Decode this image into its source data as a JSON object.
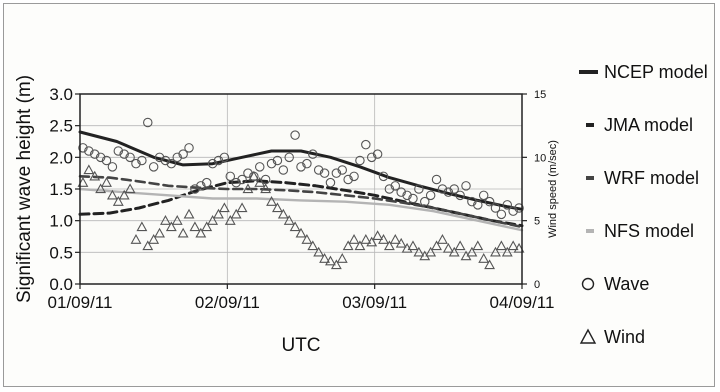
{
  "chart_data": {
    "type": "line",
    "xlabel": "UTC",
    "ylabel": "Significant wave height (m)",
    "y2label": "Wind speed (m/sec)",
    "x_ticks": [
      "01/09/11",
      "02/09/11",
      "03/09/11",
      "04/09/11"
    ],
    "y_ticks": [
      "0.0",
      "0.5",
      "1.0",
      "1.5",
      "2.0",
      "2.5",
      "3.0"
    ],
    "y2_ticks": [
      "0",
      "5",
      "10",
      "15"
    ],
    "xlim": [
      0,
      3
    ],
    "ylim": [
      0,
      3
    ],
    "y2lim": [
      0,
      15
    ],
    "grid": true,
    "legend_position": "right",
    "series": [
      {
        "name": "NCEP model",
        "kind": "line",
        "style": "solid",
        "color": "#222222",
        "x": [
          0,
          0.25,
          0.5,
          0.7,
          0.9,
          1.1,
          1.3,
          1.5,
          1.7,
          1.9,
          2.1,
          2.3,
          2.5,
          2.7,
          2.9,
          3.0
        ],
        "y": [
          2.4,
          2.25,
          2.0,
          1.88,
          1.9,
          2.0,
          2.1,
          2.1,
          2.0,
          1.85,
          1.68,
          1.55,
          1.43,
          1.32,
          1.22,
          1.18
        ]
      },
      {
        "name": "JMA model",
        "kind": "line",
        "style": "dashed",
        "color": "#222222",
        "x": [
          0,
          0.2,
          0.4,
          0.6,
          0.8,
          1.0,
          1.2,
          1.4,
          1.6,
          1.8,
          2.0,
          2.2,
          2.4,
          2.6,
          2.8,
          3.0
        ],
        "y": [
          1.1,
          1.12,
          1.2,
          1.32,
          1.48,
          1.6,
          1.63,
          1.6,
          1.55,
          1.48,
          1.4,
          1.3,
          1.2,
          1.1,
          1.0,
          0.92
        ]
      },
      {
        "name": "WRF model",
        "kind": "line",
        "style": "dashed",
        "color": "#444444",
        "x": [
          0,
          0.2,
          0.4,
          0.6,
          0.8,
          1.0,
          1.2,
          1.4,
          1.6,
          1.8,
          2.0,
          2.2,
          2.4,
          2.6,
          2.8,
          3.0
        ],
        "y": [
          1.7,
          1.68,
          1.62,
          1.55,
          1.52,
          1.5,
          1.5,
          1.48,
          1.45,
          1.4,
          1.35,
          1.28,
          1.2,
          1.1,
          1.0,
          0.9
        ]
      },
      {
        "name": "NFS model",
        "kind": "line",
        "style": "solid",
        "color": "#b4b4b4",
        "x": [
          0,
          0.3,
          0.6,
          0.9,
          1.2,
          1.5,
          1.8,
          2.1,
          2.4,
          2.7,
          3.0
        ],
        "y": [
          1.5,
          1.45,
          1.4,
          1.35,
          1.35,
          1.32,
          1.3,
          1.25,
          1.15,
          1.0,
          0.85
        ]
      },
      {
        "name": "Wave",
        "kind": "marker",
        "marker": "circle",
        "axis": "left",
        "x": [
          0.02,
          0.06,
          0.1,
          0.14,
          0.18,
          0.22,
          0.26,
          0.3,
          0.34,
          0.38,
          0.42,
          0.46,
          0.5,
          0.54,
          0.58,
          0.62,
          0.66,
          0.7,
          0.74,
          0.78,
          0.82,
          0.86,
          0.9,
          0.94,
          0.98,
          1.02,
          1.06,
          1.1,
          1.14,
          1.18,
          1.22,
          1.26,
          1.3,
          1.34,
          1.38,
          1.42,
          1.46,
          1.5,
          1.54,
          1.58,
          1.62,
          1.66,
          1.7,
          1.74,
          1.78,
          1.82,
          1.86,
          1.9,
          1.94,
          1.98,
          2.02,
          2.06,
          2.1,
          2.14,
          2.18,
          2.22,
          2.26,
          2.3,
          2.34,
          2.38,
          2.42,
          2.46,
          2.5,
          2.54,
          2.58,
          2.62,
          2.66,
          2.7,
          2.74,
          2.78,
          2.82,
          2.86,
          2.9,
          2.94,
          2.98
        ],
        "y": [
          2.15,
          2.1,
          2.05,
          2.0,
          1.95,
          1.85,
          2.1,
          2.05,
          2.0,
          1.9,
          1.95,
          2.55,
          1.85,
          2.0,
          1.95,
          1.9,
          2.0,
          2.05,
          2.15,
          1.5,
          1.55,
          1.6,
          1.9,
          1.95,
          2.0,
          1.7,
          1.6,
          1.65,
          1.75,
          1.7,
          1.85,
          1.65,
          1.9,
          1.95,
          1.8,
          2.0,
          2.35,
          1.85,
          1.9,
          2.05,
          1.8,
          1.75,
          1.6,
          1.75,
          1.8,
          1.65,
          1.7,
          1.95,
          2.2,
          2.0,
          2.05,
          1.7,
          1.5,
          1.55,
          1.45,
          1.4,
          1.35,
          1.5,
          1.3,
          1.4,
          1.65,
          1.5,
          1.45,
          1.5,
          1.4,
          1.55,
          1.3,
          1.25,
          1.4,
          1.3,
          1.2,
          1.1,
          1.25,
          1.15,
          1.2
        ]
      },
      {
        "name": "Wind",
        "kind": "marker",
        "marker": "triangle",
        "axis": "right",
        "x": [
          0.02,
          0.06,
          0.1,
          0.14,
          0.18,
          0.22,
          0.26,
          0.3,
          0.34,
          0.38,
          0.42,
          0.46,
          0.5,
          0.54,
          0.58,
          0.62,
          0.66,
          0.7,
          0.74,
          0.78,
          0.82,
          0.86,
          0.9,
          0.94,
          0.98,
          1.02,
          1.06,
          1.1,
          1.14,
          1.18,
          1.22,
          1.26,
          1.3,
          1.34,
          1.38,
          1.42,
          1.46,
          1.5,
          1.54,
          1.58,
          1.62,
          1.66,
          1.7,
          1.74,
          1.78,
          1.82,
          1.86,
          1.9,
          1.94,
          1.98,
          2.02,
          2.06,
          2.1,
          2.14,
          2.18,
          2.22,
          2.26,
          2.3,
          2.34,
          2.38,
          2.42,
          2.46,
          2.5,
          2.54,
          2.58,
          2.62,
          2.66,
          2.7,
          2.74,
          2.78,
          2.82,
          2.86,
          2.9,
          2.94,
          2.98
        ],
        "y": [
          8.0,
          9.0,
          8.5,
          7.5,
          8.0,
          7.0,
          6.5,
          7.0,
          7.5,
          3.5,
          4.5,
          3.0,
          3.5,
          4.0,
          5.0,
          4.5,
          5.0,
          4.0,
          5.5,
          4.5,
          4.0,
          4.5,
          5.0,
          5.5,
          6.0,
          5.0,
          5.5,
          6.0,
          7.5,
          8.5,
          8.0,
          7.5,
          6.5,
          6.0,
          5.5,
          5.0,
          4.5,
          4.0,
          3.5,
          3.0,
          2.5,
          2.0,
          1.8,
          1.5,
          2.0,
          3.0,
          3.5,
          3.0,
          3.5,
          3.3,
          3.8,
          3.5,
          3.0,
          3.5,
          3.2,
          2.8,
          3.0,
          2.5,
          2.2,
          2.5,
          3.0,
          3.5,
          2.8,
          2.5,
          3.0,
          2.2,
          2.5,
          3.0,
          2.0,
          1.5,
          2.5,
          3.0,
          2.5,
          3.0,
          2.8
        ]
      }
    ],
    "legend": [
      {
        "label": "NCEP model",
        "symbol": "bar",
        "color": "#222222"
      },
      {
        "label": "JMA model",
        "symbol": "bar",
        "color": "#222222"
      },
      {
        "label": "WRF model",
        "symbol": "bar",
        "color": "#444444"
      },
      {
        "label": "NFS model",
        "symbol": "bar",
        "color": "#b4b4b4"
      },
      {
        "label": "Wave",
        "symbol": "circle",
        "color": "#222222"
      },
      {
        "label": "Wind",
        "symbol": "triangle",
        "color": "#222222"
      }
    ]
  }
}
